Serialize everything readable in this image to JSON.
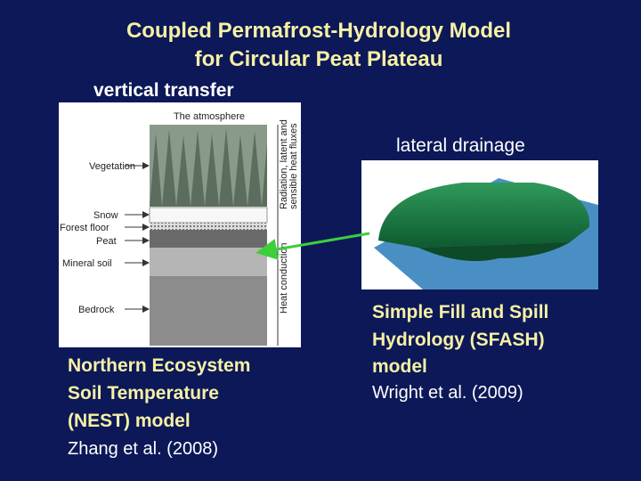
{
  "title": [
    "Coupled Permafrost-Hydrology Model",
    "for Circular Peat Plateau"
  ],
  "left": {
    "heading": "vertical transfer",
    "figure": {
      "top": "The atmosphere",
      "layers": [
        "Vegetation",
        "Snow",
        "Forest floor",
        "Peat",
        "Mineral soil",
        "Bedrock"
      ],
      "flux_label": [
        "Radiation, latent and",
        "sensible heat fluxes"
      ],
      "conduction_label": "Heat conduction"
    },
    "model": [
      "Northern Ecosystem",
      "Soil Temperature",
      "(NEST) model"
    ],
    "citation": "Zhang et al. (2008)"
  },
  "right": {
    "heading": "lateral drainage",
    "model": [
      "Simple Fill and Spill",
      "Hydrology (SFASH)",
      "model"
    ],
    "citation": "Wright et al. (2009)"
  }
}
